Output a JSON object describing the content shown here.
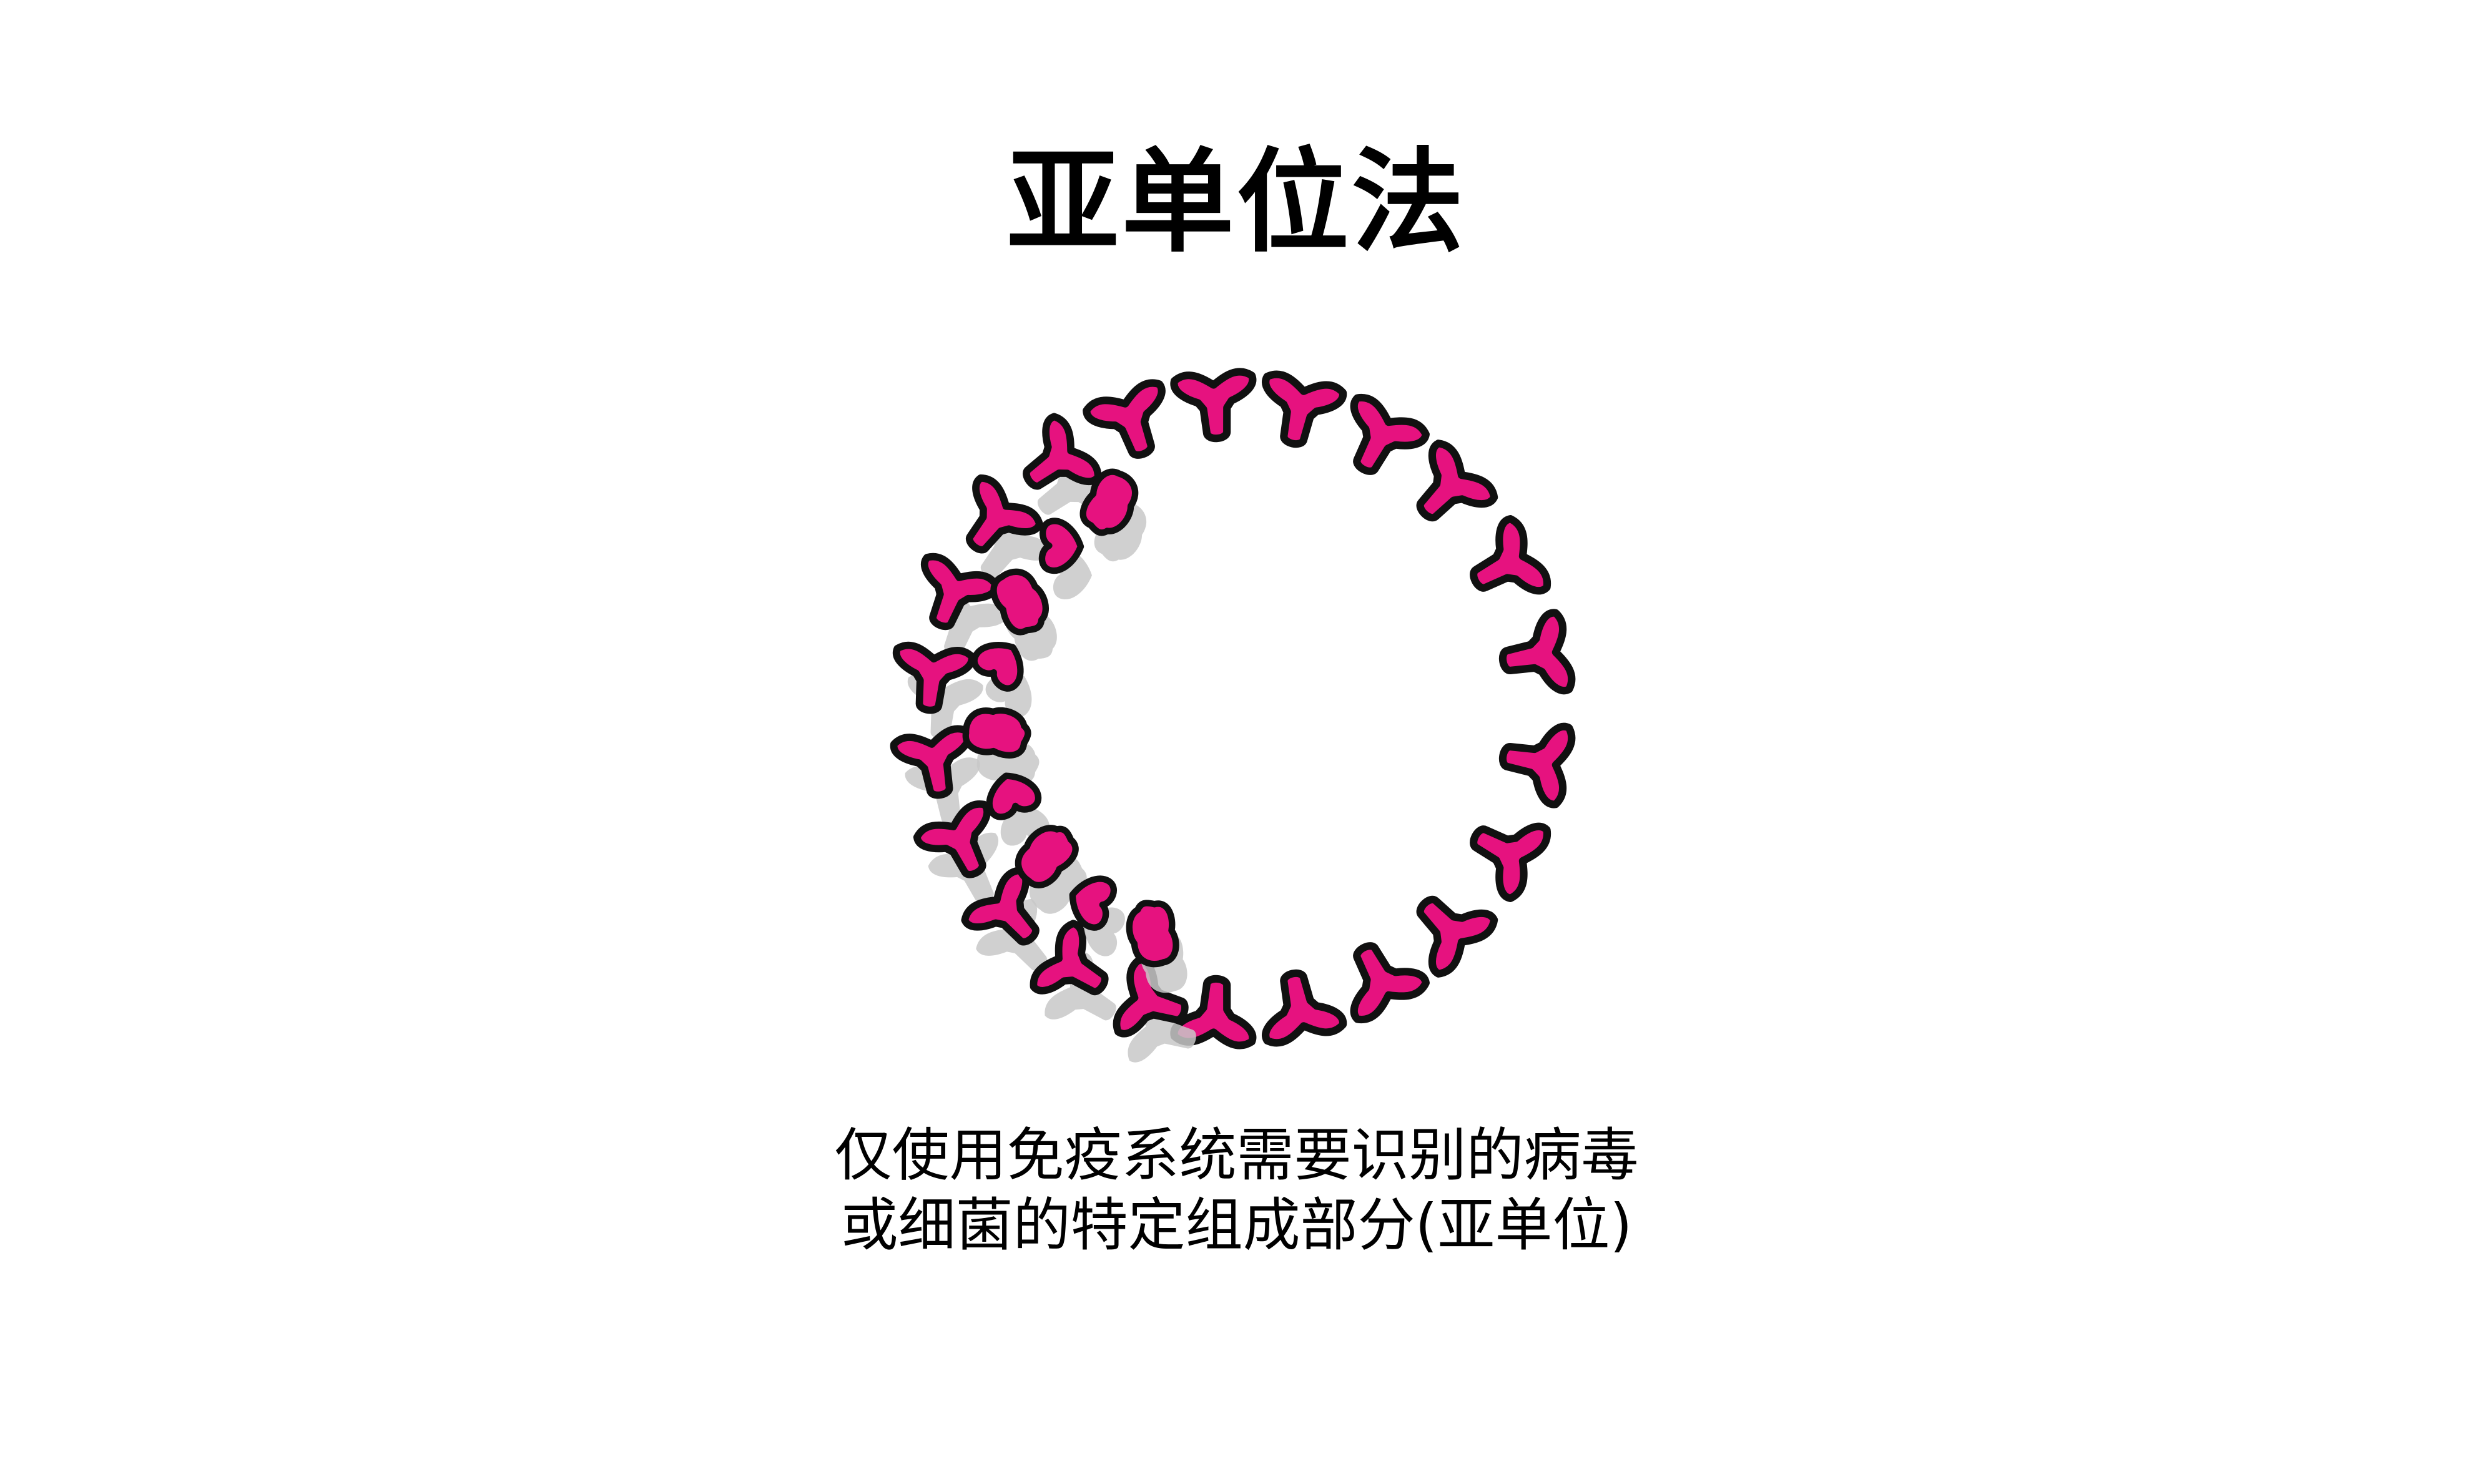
{
  "title": "亚单位法",
  "caption": {
    "line1": "仅使用免疫系统需要识别的病毒",
    "line2": "或细菌的特定组成部分(亚单位)"
  },
  "illustration": {
    "fill_color": "#E6127F",
    "outline_color": "#111111",
    "shadow_color": "#C8C8C8",
    "protein_count": 22,
    "loose_piece_count": 12
  }
}
